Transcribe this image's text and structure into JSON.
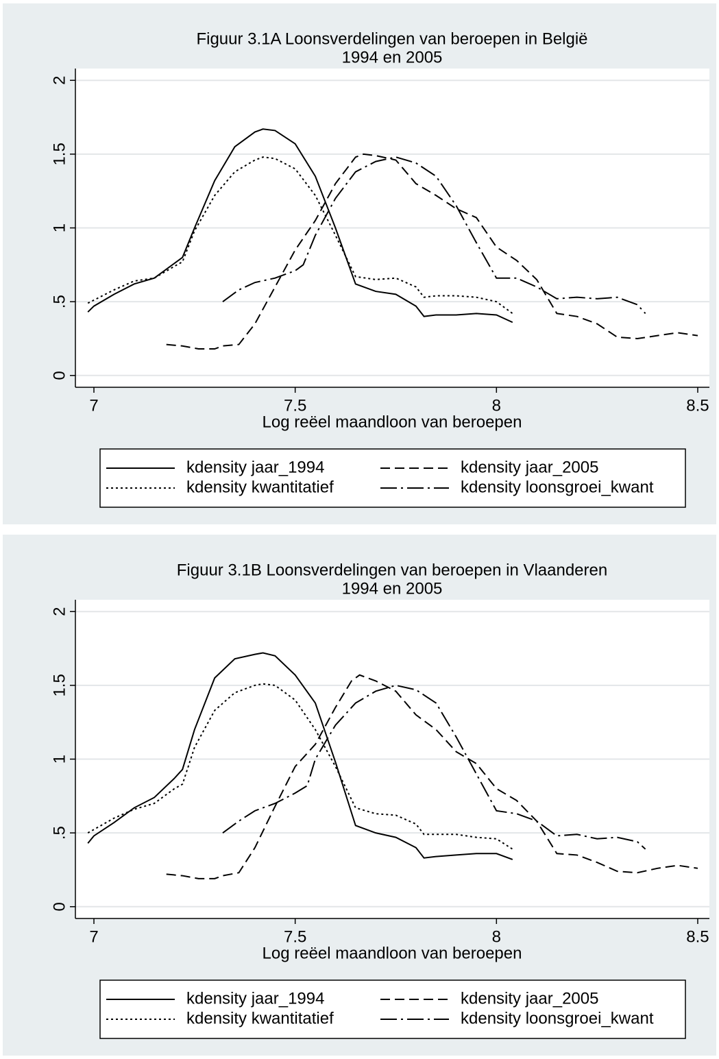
{
  "chart_data": [
    {
      "type": "line",
      "title": "Figuur 3.1A Loonsverdelingen van beroepen in België",
      "subtitle": "1994 en 2005",
      "x_label": "Log reëel maandloon van beroepen",
      "xlim": [
        6.954,
        8.529
      ],
      "xticks": [
        7,
        7.5,
        8,
        8.5
      ],
      "ylim": [
        -0.08,
        2.08
      ],
      "yticks": [
        0,
        {
          "value": 0.5,
          "label": ".5"
        },
        1,
        1.5,
        2
      ],
      "grid": true,
      "series": [
        {
          "name": "kdensity jaar_1994",
          "color": "#000000",
          "style": "solid",
          "x": [
            6.985,
            7.0,
            7.05,
            7.1,
            7.15,
            7.2,
            7.22,
            7.25,
            7.3,
            7.35,
            7.4,
            7.42,
            7.45,
            7.5,
            7.55,
            7.6,
            7.65,
            7.7,
            7.75,
            7.8,
            7.82,
            7.85,
            7.9,
            7.95,
            8.0,
            8.04
          ],
          "values": [
            0.43,
            0.47,
            0.55,
            0.62,
            0.66,
            0.76,
            0.8,
            1.0,
            1.32,
            1.55,
            1.65,
            1.67,
            1.66,
            1.57,
            1.35,
            1.0,
            0.62,
            0.57,
            0.55,
            0.47,
            0.4,
            0.41,
            0.41,
            0.42,
            0.41,
            0.36
          ]
        },
        {
          "name": "kdensity jaar_2005",
          "color": "#000000",
          "style": "dashed",
          "x": [
            7.18,
            7.22,
            7.26,
            7.3,
            7.32,
            7.36,
            7.4,
            7.45,
            7.5,
            7.55,
            7.6,
            7.65,
            7.67,
            7.7,
            7.75,
            7.8,
            7.85,
            7.9,
            7.95,
            8.0,
            8.05,
            8.1,
            8.15,
            8.2,
            8.25,
            8.3,
            8.35,
            8.4,
            8.45,
            8.5
          ],
          "values": [
            0.21,
            0.2,
            0.18,
            0.18,
            0.2,
            0.21,
            0.35,
            0.6,
            0.85,
            1.05,
            1.3,
            1.48,
            1.5,
            1.49,
            1.46,
            1.3,
            1.22,
            1.13,
            1.07,
            0.87,
            0.78,
            0.65,
            0.42,
            0.4,
            0.35,
            0.26,
            0.25,
            0.27,
            0.29,
            0.27
          ]
        },
        {
          "name": "kdensity kwantitatief",
          "color": "#000000",
          "style": "dotted",
          "x": [
            6.985,
            7.05,
            7.1,
            7.15,
            7.2,
            7.22,
            7.25,
            7.3,
            7.35,
            7.4,
            7.42,
            7.45,
            7.5,
            7.55,
            7.6,
            7.65,
            7.7,
            7.75,
            7.8,
            7.82,
            7.85,
            7.9,
            7.95,
            8.0,
            8.04
          ],
          "values": [
            0.49,
            0.58,
            0.64,
            0.66,
            0.74,
            0.77,
            0.98,
            1.22,
            1.38,
            1.46,
            1.48,
            1.47,
            1.4,
            1.22,
            0.95,
            0.67,
            0.65,
            0.66,
            0.6,
            0.53,
            0.54,
            0.54,
            0.53,
            0.5,
            0.42
          ]
        },
        {
          "name": "kdensity loonsgroei_kwant",
          "color": "#000000",
          "style": "dashdot",
          "x": [
            7.32,
            7.36,
            7.4,
            7.45,
            7.5,
            7.52,
            7.55,
            7.6,
            7.65,
            7.7,
            7.75,
            7.8,
            7.85,
            7.9,
            7.95,
            8.0,
            8.05,
            8.1,
            8.15,
            8.2,
            8.25,
            8.3,
            8.35,
            8.37
          ],
          "values": [
            0.5,
            0.58,
            0.63,
            0.66,
            0.71,
            0.75,
            0.95,
            1.2,
            1.38,
            1.45,
            1.48,
            1.44,
            1.35,
            1.15,
            0.9,
            0.66,
            0.66,
            0.6,
            0.52,
            0.53,
            0.52,
            0.53,
            0.48,
            0.42
          ]
        }
      ]
    },
    {
      "type": "line",
      "title": "Figuur 3.1B Loonsverdelingen van beroepen in Vlaanderen",
      "subtitle": "1994 en 2005",
      "x_label": "Log reëel maandloon van beroepen",
      "xlim": [
        6.954,
        8.529
      ],
      "xticks": [
        7,
        7.5,
        8,
        8.5
      ],
      "ylim": [
        -0.08,
        2.08
      ],
      "yticks": [
        0,
        {
          "value": 0.5,
          "label": ".5"
        },
        1,
        1.5,
        2
      ],
      "grid": true,
      "series": [
        {
          "name": "kdensity jaar_1994",
          "color": "#000000",
          "style": "solid",
          "x": [
            6.985,
            7.0,
            7.05,
            7.1,
            7.15,
            7.2,
            7.22,
            7.25,
            7.3,
            7.35,
            7.4,
            7.42,
            7.45,
            7.5,
            7.55,
            7.6,
            7.65,
            7.7,
            7.75,
            7.8,
            7.82,
            7.85,
            7.9,
            7.95,
            8.0,
            8.04
          ],
          "values": [
            0.43,
            0.48,
            0.57,
            0.67,
            0.74,
            0.87,
            0.93,
            1.2,
            1.55,
            1.68,
            1.71,
            1.72,
            1.7,
            1.57,
            1.38,
            0.98,
            0.55,
            0.5,
            0.47,
            0.4,
            0.33,
            0.34,
            0.35,
            0.36,
            0.36,
            0.32
          ]
        },
        {
          "name": "kdensity jaar_2005",
          "color": "#000000",
          "style": "dashed",
          "x": [
            7.18,
            7.22,
            7.26,
            7.3,
            7.32,
            7.36,
            7.4,
            7.45,
            7.5,
            7.55,
            7.6,
            7.64,
            7.66,
            7.7,
            7.75,
            7.8,
            7.85,
            7.9,
            7.95,
            8.0,
            8.05,
            8.1,
            8.15,
            8.2,
            8.25,
            8.3,
            8.35,
            8.4,
            8.45,
            8.5
          ],
          "values": [
            0.22,
            0.21,
            0.19,
            0.19,
            0.21,
            0.23,
            0.4,
            0.68,
            0.95,
            1.1,
            1.35,
            1.53,
            1.57,
            1.53,
            1.46,
            1.3,
            1.2,
            1.05,
            0.97,
            0.8,
            0.72,
            0.58,
            0.36,
            0.35,
            0.3,
            0.24,
            0.23,
            0.26,
            0.28,
            0.26
          ]
        },
        {
          "name": "kdensity kwantitatief",
          "color": "#000000",
          "style": "dotted",
          "x": [
            6.985,
            7.05,
            7.1,
            7.15,
            7.2,
            7.22,
            7.25,
            7.3,
            7.35,
            7.4,
            7.42,
            7.45,
            7.5,
            7.55,
            7.6,
            7.65,
            7.7,
            7.75,
            7.8,
            7.82,
            7.85,
            7.9,
            7.95,
            8.0,
            8.04
          ],
          "values": [
            0.5,
            0.6,
            0.66,
            0.7,
            0.8,
            0.83,
            1.08,
            1.33,
            1.45,
            1.5,
            1.51,
            1.5,
            1.4,
            1.2,
            0.95,
            0.67,
            0.63,
            0.62,
            0.56,
            0.49,
            0.49,
            0.49,
            0.47,
            0.46,
            0.39
          ]
        },
        {
          "name": "kdensity loonsgroei_kwant",
          "color": "#000000",
          "style": "dashdot",
          "x": [
            7.32,
            7.36,
            7.4,
            7.45,
            7.5,
            7.53,
            7.55,
            7.6,
            7.65,
            7.7,
            7.75,
            7.8,
            7.85,
            7.9,
            7.95,
            8.0,
            8.05,
            8.1,
            8.15,
            8.2,
            8.25,
            8.3,
            8.35,
            8.37
          ],
          "values": [
            0.5,
            0.58,
            0.65,
            0.7,
            0.77,
            0.82,
            1.0,
            1.23,
            1.38,
            1.46,
            1.5,
            1.47,
            1.38,
            1.15,
            0.9,
            0.65,
            0.63,
            0.58,
            0.48,
            0.49,
            0.46,
            0.47,
            0.44,
            0.39
          ]
        }
      ]
    }
  ]
}
